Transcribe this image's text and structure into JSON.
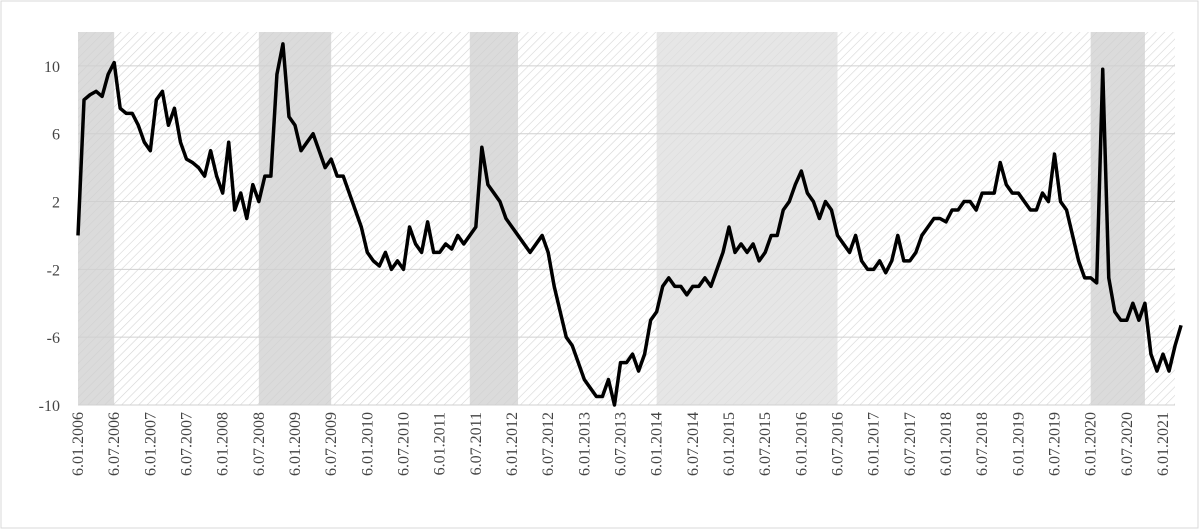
{
  "chart_data": {
    "type": "line",
    "categories": [
      "6.01.2006",
      null,
      null,
      null,
      null,
      null,
      "6.07.2006",
      null,
      null,
      null,
      null,
      null,
      "6.01.2007",
      null,
      null,
      null,
      null,
      null,
      "6.07.2007",
      null,
      null,
      null,
      null,
      null,
      "6.01.2008",
      null,
      null,
      null,
      null,
      null,
      "6.07.2008",
      null,
      null,
      null,
      null,
      null,
      "6.01.2009",
      null,
      null,
      null,
      null,
      null,
      "6.07.2009",
      null,
      null,
      null,
      null,
      null,
      "6.01.2010",
      null,
      null,
      null,
      null,
      null,
      "6.07.2010",
      null,
      null,
      null,
      null,
      null,
      "6.01.2011",
      null,
      null,
      null,
      null,
      null,
      "6.07.2011",
      null,
      null,
      null,
      null,
      null,
      "6.01.2012",
      null,
      null,
      null,
      null,
      null,
      "6.07.2012",
      null,
      null,
      null,
      null,
      null,
      "6.01.2013",
      null,
      null,
      null,
      null,
      null,
      "6.07.2013",
      null,
      null,
      null,
      null,
      null,
      "6.01.2014",
      null,
      null,
      null,
      null,
      null,
      "6.07.2014",
      null,
      null,
      null,
      null,
      null,
      "6.01.2015",
      null,
      null,
      null,
      null,
      null,
      "6.07.2015",
      null,
      null,
      null,
      null,
      null,
      "6.01.2016",
      null,
      null,
      null,
      null,
      null,
      "6.07.2016",
      null,
      null,
      null,
      null,
      null,
      "6.01.2017",
      null,
      null,
      null,
      null,
      null,
      "6.07.2017",
      null,
      null,
      null,
      null,
      null,
      "6.01.2018",
      null,
      null,
      null,
      null,
      null,
      "6.07.2018",
      null,
      null,
      null,
      null,
      null,
      "6.01.2019",
      null,
      null,
      null,
      null,
      null,
      "6.07.2019",
      null,
      null,
      null,
      null,
      null,
      "6.01.2020",
      null,
      null,
      null,
      null,
      null,
      "6.07.2020",
      null,
      null,
      null,
      null,
      null,
      "6.01.2021",
      null,
      null,
      null
    ],
    "values": [
      0,
      8,
      8.3,
      8.5,
      8.2,
      9.5,
      10.2,
      7.5,
      7.2,
      7.2,
      6.5,
      5.5,
      5,
      8,
      8.5,
      6.5,
      7.5,
      5.5,
      4.5,
      4.3,
      4,
      3.5,
      5,
      3.5,
      2.5,
      5.5,
      1.5,
      2.5,
      1,
      3,
      2,
      3.5,
      3.5,
      9.5,
      11.3,
      7,
      6.5,
      5,
      5.5,
      6,
      5,
      4,
      4.5,
      3.5,
      3.5,
      2.5,
      1.5,
      0.5,
      -1,
      -1.5,
      -1.8,
      -1,
      -2,
      -1.5,
      -2,
      0.5,
      -0.5,
      -1,
      0.8,
      -1,
      -1,
      -0.5,
      -0.8,
      0,
      -0.5,
      0,
      0.5,
      5.2,
      3,
      2.5,
      2,
      1,
      0.5,
      0,
      -0.5,
      -1,
      -0.5,
      0,
      -1,
      -3,
      -4.5,
      -6,
      -6.5,
      -7.5,
      -8.5,
      -9,
      -9.5,
      -9.5,
      -8.5,
      -10,
      -7.5,
      -7.5,
      -7,
      -8,
      -7,
      -5,
      -4.5,
      -3,
      -2.5,
      -3,
      -3,
      -3.5,
      -3,
      -3,
      -2.5,
      -3,
      -2,
      -1,
      0.5,
      -1,
      -0.5,
      -1,
      -0.5,
      -1.5,
      -1,
      0,
      0,
      1.5,
      2,
      3,
      3.8,
      2.5,
      2,
      1,
      2,
      1.5,
      0,
      -0.5,
      -1,
      0,
      -1.5,
      -2,
      -2,
      -1.5,
      -2.2,
      -1.5,
      0,
      -1.5,
      -1.5,
      -1,
      0,
      0.5,
      1,
      1,
      0.8,
      1.5,
      1.5,
      2,
      2,
      1.5,
      2.5,
      2.5,
      2.5,
      4.3,
      3,
      2.5,
      2.5,
      2,
      1.5,
      1.5,
      2.5,
      2,
      4.8,
      2,
      1.5,
      0,
      -1.5,
      -2.5,
      -2.5,
      -2.8,
      9.8,
      -2.5,
      -4.5,
      -5,
      -5,
      -4,
      -5,
      -4,
      -7,
      -8,
      -7,
      -8,
      -6.5,
      -5.3
    ],
    "color": "#000000",
    "shaded_ranges": [
      {
        "start": 0,
        "end": 6,
        "color": "#cfcfcf"
      },
      {
        "start": 30,
        "end": 42,
        "color": "#cfcfcf"
      },
      {
        "start": 65,
        "end": 73,
        "color": "#cfcfcf"
      },
      {
        "start": 96,
        "end": 126,
        "color": "#dedede"
      },
      {
        "start": 168,
        "end": 177,
        "color": "#cfcfcf"
      }
    ],
    "ylim": [
      -10,
      12
    ],
    "yticks": [
      -10,
      -6,
      -2,
      2,
      6,
      10
    ],
    "grid": true
  }
}
